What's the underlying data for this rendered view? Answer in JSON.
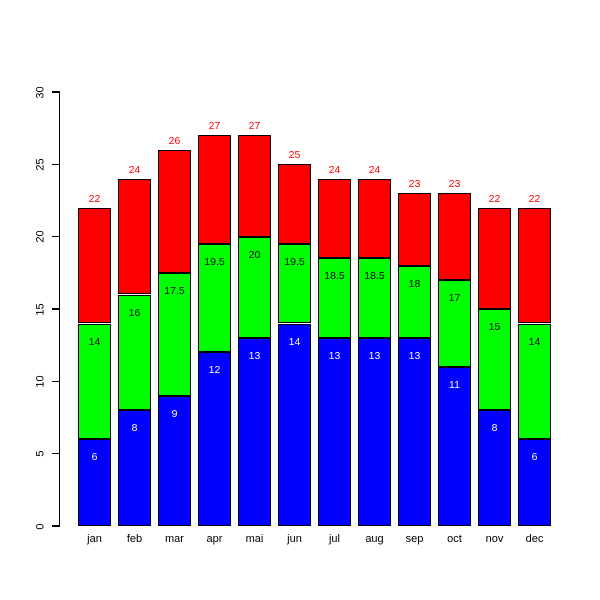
{
  "chart_data": {
    "type": "bar",
    "stacked": true,
    "title": "",
    "xlabel": "",
    "ylabel": "",
    "ylim": [
      0,
      30
    ],
    "yticks": [
      0,
      5,
      10,
      15,
      20,
      25,
      30
    ],
    "grid": false,
    "legend": "none",
    "background": "#ffffff",
    "axis_color": "#000000",
    "bar_border_color": "#000000",
    "categories": [
      "jan",
      "feb",
      "mar",
      "apr",
      "mai",
      "jun",
      "jul",
      "aug",
      "sep",
      "oct",
      "nov",
      "dec"
    ],
    "series": [
      {
        "name": "blue",
        "color": "#0000ff",
        "values": [
          6,
          8,
          9,
          12,
          13,
          14,
          13,
          13,
          13,
          11,
          8,
          6
        ]
      },
      {
        "name": "green",
        "color": "#00ff00",
        "values": [
          8,
          8,
          8.5,
          7.5,
          7,
          5.5,
          5.5,
          5.5,
          5,
          6,
          7,
          8
        ]
      },
      {
        "name": "red",
        "color": "#ff0000",
        "values": [
          8,
          8,
          8.5,
          7.5,
          7,
          5.5,
          5.5,
          5.5,
          5,
          6,
          7,
          8
        ]
      }
    ],
    "cumulative_boundaries": {
      "blue_top": [
        6,
        8,
        9,
        12,
        13,
        14,
        13,
        13,
        13,
        11,
        8,
        6
      ],
      "green_top": [
        14,
        16,
        17.5,
        19.5,
        20,
        19.5,
        18.5,
        18.5,
        18,
        17,
        15,
        14
      ],
      "totals": [
        22,
        24,
        26,
        27,
        27,
        25,
        24,
        24,
        23,
        23,
        22,
        22
      ]
    },
    "segment_labels": {
      "blue": {
        "color": "#ffffff",
        "values": [
          "6",
          "8",
          "9",
          "12",
          "13",
          "14",
          "13",
          "13",
          "13",
          "11",
          "8",
          "6"
        ]
      },
      "green": {
        "color": "#000000",
        "values": [
          "14",
          "16",
          "17.5",
          "19.5",
          "20",
          "19.5",
          "18.5",
          "18.5",
          "18",
          "17",
          "15",
          "14"
        ]
      },
      "red_totals": {
        "color": "#ff0000",
        "values": [
          "22",
          "24",
          "26",
          "27",
          "27",
          "25",
          "24",
          "24",
          "23",
          "23",
          "22",
          "22"
        ]
      }
    }
  }
}
